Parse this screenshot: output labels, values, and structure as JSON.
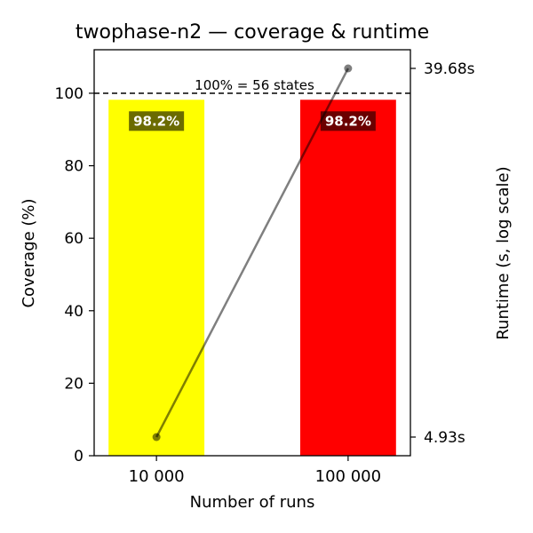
{
  "chart_data": {
    "type": "bar",
    "title": "twophase-n2 — coverage & runtime",
    "xlabel": "Number of runs",
    "ylabel": "Coverage (%)",
    "ylabel_right": "Runtime (s, log scale)",
    "categories": [
      "10 000",
      "100 000"
    ],
    "ylim": [
      0,
      112
    ],
    "yticks": [
      0,
      20,
      40,
      60,
      80,
      100
    ],
    "grid": false,
    "bar_colors": [
      "#ffff00",
      "#ff0000"
    ],
    "bar_label_bg": [
      "#6b6b00",
      "#6b0000"
    ],
    "series": [
      {
        "type": "bar",
        "values": [
          98.2,
          98.2
        ],
        "labels": [
          "98.2%",
          "98.2%"
        ]
      },
      {
        "type": "line",
        "axis": "right",
        "scale": "log",
        "values": [
          4.93,
          39.68
        ],
        "color": "#000000",
        "opacity": 0.5
      }
    ],
    "right_axis": {
      "tick_labels": [
        "4.93s",
        "39.68s"
      ],
      "tick_values": [
        4.93,
        39.68
      ]
    },
    "reference_line": {
      "value": 100,
      "label": "100% = 56 states",
      "style": "dashed"
    }
  }
}
